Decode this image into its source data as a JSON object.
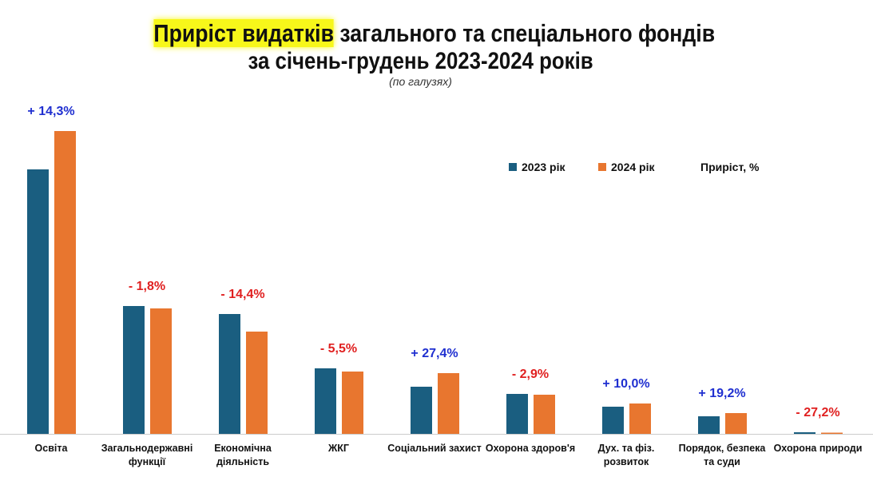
{
  "title": {
    "highlight": "Приріст видатків",
    "rest": " загального та спеціального фондів",
    "line2": "за січень-грудень 2023-2024 років",
    "sub": "(по галузях)"
  },
  "colors": {
    "s2023": "#1a5e80",
    "s2024": "#e8762f",
    "pos": "#1f2fd0",
    "neg": "#e02020"
  },
  "chart_data": {
    "type": "bar",
    "title": "Приріст видатків загального та спеціального фондів за січень-грудень 2023-2024 років",
    "categories": [
      "Освіта",
      "Загальнодержавні функції",
      "Економічна діяльність",
      "ЖКГ",
      "Соціальний захист",
      "Охорона здоров'я",
      "Дух. та фіз. розвиток",
      "Порядок, безпека та суди",
      "Охорона природи"
    ],
    "category_lines": [
      [
        "Освіта"
      ],
      [
        "Загальнодержавні",
        "функції"
      ],
      [
        "Економічна",
        "діяльність"
      ],
      [
        "ЖКГ"
      ],
      [
        "Соціальний захист"
      ],
      [
        "Охорона здоров'я"
      ],
      [
        "Дух. та фіз.",
        "розвиток"
      ],
      [
        "Порядок, безпека",
        "та суди"
      ],
      [
        "Охорона природи"
      ]
    ],
    "series": [
      {
        "name": "2023 рік",
        "values": [
          331,
          160,
          150,
          82,
          59,
          50,
          34,
          22,
          2
        ]
      },
      {
        "name": "2024 рік",
        "values": [
          379,
          157,
          128,
          78,
          76,
          49,
          38,
          26,
          1.5
        ]
      }
    ],
    "growth_labels": [
      "+ 14,3%",
      "- 1,8%",
      "- 14,4%",
      "- 5,5%",
      "+ 27,4%",
      "- 2,9%",
      "+ 10,0%",
      "+ 19,2%",
      "- 27,2%"
    ],
    "growth_legend": "Приріст, %",
    "value_units": "relative (no axis shown)",
    "ylim": [
      0,
      380
    ],
    "legend": "top-right"
  }
}
